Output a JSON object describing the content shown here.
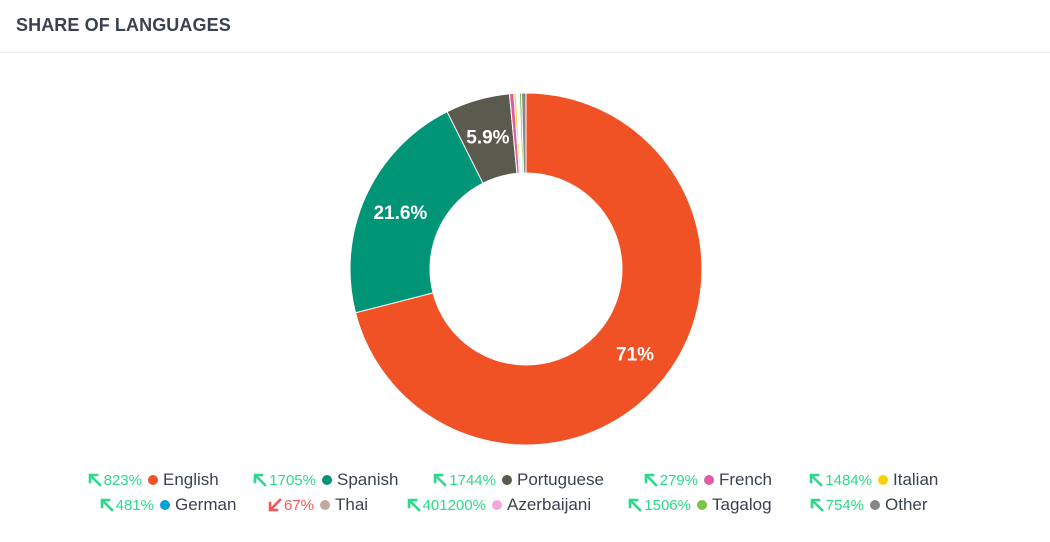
{
  "header": {
    "title": "SHARE OF LANGUAGES"
  },
  "chart_data": {
    "type": "pie",
    "donut": true,
    "title": "SHARE OF LANGUAGES",
    "legend_position": "bottom",
    "slices": [
      {
        "label": "English",
        "value": 71,
        "display": "71%",
        "color": "#f05125"
      },
      {
        "label": "Spanish",
        "value": 21.6,
        "display": "21.6%",
        "color": "#009577"
      },
      {
        "label": "Portuguese",
        "value": 5.9,
        "display": "5.9%",
        "color": "#5a5a4e"
      },
      {
        "label": "French",
        "value": 0.4,
        "display": "",
        "color": "#e05ca2"
      },
      {
        "label": "Italian",
        "value": 0.2,
        "display": "",
        "color": "#fbd103"
      },
      {
        "label": "German",
        "value": 0.1,
        "display": "",
        "color": "#00a1db"
      },
      {
        "label": "Thai",
        "value": 0.1,
        "display": "",
        "color": "#c3a89d"
      },
      {
        "label": "Azerbaijani",
        "value": 0.1,
        "display": "",
        "color": "#f4a7d8"
      },
      {
        "label": "Tagalog",
        "value": 0.2,
        "display": "",
        "color": "#7bc24b"
      },
      {
        "label": "Other",
        "value": 0.4,
        "display": "",
        "color": "#868686"
      }
    ],
    "legend_rows": [
      [
        {
          "label": "English",
          "change": "823%",
          "direction": "up",
          "color": "#f05125"
        },
        {
          "label": "Spanish",
          "change": "1705%",
          "direction": "up",
          "color": "#009577"
        },
        {
          "label": "Portuguese",
          "change": "1744%",
          "direction": "up",
          "color": "#5a5a4e"
        },
        {
          "label": "French",
          "change": "279%",
          "direction": "up",
          "color": "#e05ca2"
        },
        {
          "label": "Italian",
          "change": "1484%",
          "direction": "up",
          "color": "#fbd103"
        }
      ],
      [
        {
          "label": "German",
          "change": "481%",
          "direction": "up",
          "color": "#00a1db"
        },
        {
          "label": "Thai",
          "change": "67%",
          "direction": "down",
          "color": "#c3a89d"
        },
        {
          "label": "Azerbaijani",
          "change": "401200%",
          "direction": "up",
          "color": "#f4a7d8"
        },
        {
          "label": "Tagalog",
          "change": "1506%",
          "direction": "up",
          "color": "#7bc24b"
        },
        {
          "label": "Other",
          "change": "754%",
          "direction": "up",
          "color": "#868686"
        }
      ]
    ]
  }
}
